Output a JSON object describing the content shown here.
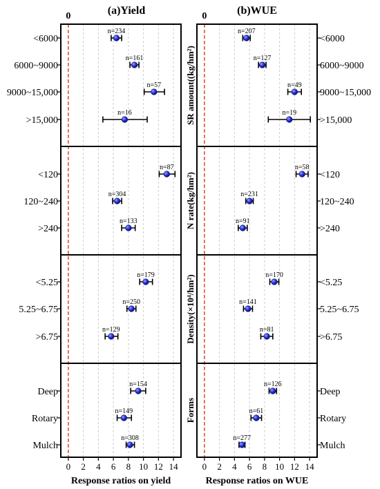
{
  "chart_data": [
    {
      "type": "scatter",
      "title": "(a)Yield",
      "xlabel": "Response ratios on yield",
      "xlim": [
        -1,
        15
      ],
      "xticks": [
        0,
        2,
        4,
        6,
        8,
        10,
        12,
        14
      ],
      "zero_label": "0",
      "grid": true,
      "groups": [
        {
          "name": "",
          "points": [
            {
              "label": "<6000",
              "mean": 6.4,
              "low": 5.7,
              "high": 7.1,
              "n_label": "n=234"
            },
            {
              "label": "6000~9000",
              "mean": 8.8,
              "low": 8.2,
              "high": 9.4,
              "n_label": "n=161"
            },
            {
              "label": "9000~15,000",
              "mean": 11.4,
              "low": 10.1,
              "high": 12.8,
              "n_label": "n=57"
            },
            {
              "label": ">15,000",
              "mean": 7.5,
              "low": 4.6,
              "high": 10.5,
              "n_label": "n=16"
            }
          ]
        },
        {
          "name": "",
          "points": [
            {
              "label": "<120",
              "mean": 13.1,
              "low": 12.1,
              "high": 14.2,
              "n_label": "n=87"
            },
            {
              "label": "120~240",
              "mean": 6.5,
              "low": 5.9,
              "high": 7.1,
              "n_label": "n=304"
            },
            {
              "label": ">240",
              "mean": 8.0,
              "low": 7.1,
              "high": 8.9,
              "n_label": "n=133"
            }
          ]
        },
        {
          "name": "",
          "points": [
            {
              "label": "<5.25",
              "mean": 10.3,
              "low": 9.5,
              "high": 11.2,
              "n_label": "n=179"
            },
            {
              "label": "5.25~6.75",
              "mean": 8.4,
              "low": 7.8,
              "high": 9.0,
              "n_label": "n=250"
            },
            {
              "label": ">6.75",
              "mean": 5.7,
              "low": 4.9,
              "high": 6.6,
              "n_label": "n=129"
            }
          ]
        },
        {
          "name": "",
          "points": [
            {
              "label": "Deep",
              "mean": 9.3,
              "low": 8.3,
              "high": 10.3,
              "n_label": "n=154"
            },
            {
              "label": "Rotary",
              "mean": 7.4,
              "low": 6.5,
              "high": 8.4,
              "n_label": "n=149"
            },
            {
              "label": "Mulch",
              "mean": 8.2,
              "low": 7.7,
              "high": 8.8,
              "n_label": "n=308"
            }
          ]
        }
      ]
    },
    {
      "type": "scatter",
      "title": "(b)WUE",
      "xlabel": "Response ratios on WUE",
      "xlim": [
        -1,
        15
      ],
      "xticks": [
        0,
        2,
        4,
        6,
        8,
        10,
        12,
        14
      ],
      "zero_label": "0",
      "grid": true,
      "groups": [
        {
          "name": "SR amount((kg/hm²)",
          "points": [
            {
              "label": "<6000",
              "mean": 5.6,
              "low": 5.1,
              "high": 6.1,
              "n_label": "n=207"
            },
            {
              "label": "6000~9000",
              "mean": 7.7,
              "low": 7.2,
              "high": 8.2,
              "n_label": "n=127"
            },
            {
              "label": "9000~15,000",
              "mean": 12.0,
              "low": 11.1,
              "high": 12.9,
              "n_label": "n=49"
            },
            {
              "label": ">15,000",
              "mean": 11.3,
              "low": 8.5,
              "high": 14.1,
              "n_label": "n=19"
            }
          ]
        },
        {
          "name": "N rate(kg/hm²)",
          "points": [
            {
              "label": "<120",
              "mean": 13.0,
              "low": 12.2,
              "high": 13.8,
              "n_label": "n=58"
            },
            {
              "label": "120~240",
              "mean": 6.0,
              "low": 5.5,
              "high": 6.5,
              "n_label": "n=231"
            },
            {
              "label": ">240",
              "mean": 5.1,
              "low": 4.5,
              "high": 5.7,
              "n_label": "n=91"
            }
          ]
        },
        {
          "name": "Density(×10⁴/hm²)",
          "points": [
            {
              "label": "<5.25",
              "mean": 9.3,
              "low": 8.7,
              "high": 9.9,
              "n_label": "n=170"
            },
            {
              "label": "5.25~6.75",
              "mean": 5.8,
              "low": 5.2,
              "high": 6.4,
              "n_label": "n=141"
            },
            {
              "label": ">6.75",
              "mean": 8.3,
              "low": 7.5,
              "high": 9.1,
              "n_label": "n=81"
            }
          ]
        },
        {
          "name": "Forms",
          "points": [
            {
              "label": "Deep",
              "mean": 9.1,
              "low": 8.6,
              "high": 9.6,
              "n_label": "n=126"
            },
            {
              "label": "Rotary",
              "mean": 6.9,
              "low": 6.2,
              "high": 7.6,
              "n_label": "n=61"
            },
            {
              "label": "Mulch",
              "mean": 5.0,
              "low": 4.6,
              "high": 5.4,
              "n_label": "n=277"
            }
          ]
        }
      ]
    }
  ]
}
